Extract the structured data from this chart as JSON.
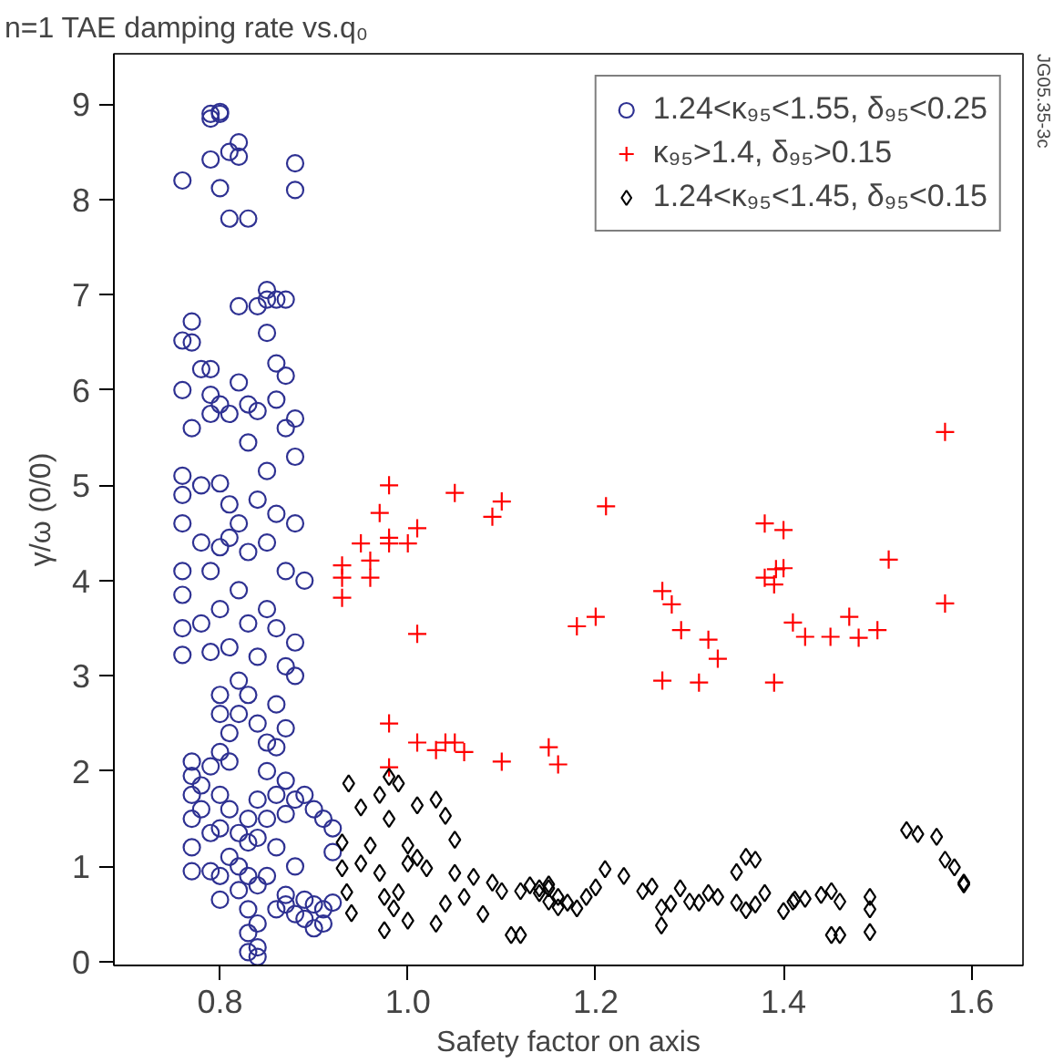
{
  "chart_data": {
    "type": "scatter",
    "title": "n=1 TAE damping rate vs.q₀",
    "xlabel": "Safety factor on axis",
    "ylabel": "γ/ω (0/0)",
    "annotations": [
      "JG05.35-3c"
    ],
    "xlim": [
      0.687,
      1.655
    ],
    "ylim": [
      -0.04,
      9.53
    ],
    "xticks": [
      0.8,
      {
        "value": 1.0,
        "label": "1.0"
      },
      1.2,
      1.4,
      1.6
    ],
    "yticks": [
      0,
      1,
      2,
      3,
      4,
      5,
      6,
      7,
      8,
      9
    ],
    "grid": false,
    "legend": "top right",
    "series": [
      {
        "name": "1.24<κ₉₅<1.55, δ₉₅<0.25",
        "color": "#2e3192",
        "marker": "circle",
        "x": [
          0.76,
          0.79,
          0.79,
          0.8,
          0.8,
          0.79,
          0.8,
          0.81,
          0.82,
          0.82,
          0.81,
          0.83,
          0.88,
          0.88,
          0.82,
          0.84,
          0.85,
          0.85,
          0.85,
          0.86,
          0.87,
          0.77,
          0.76,
          0.77,
          0.78,
          0.79,
          0.82,
          0.76,
          0.86,
          0.87,
          0.86,
          0.79,
          0.79,
          0.8,
          0.81,
          0.83,
          0.84,
          0.88,
          0.87,
          0.77,
          0.83,
          0.88,
          0.85,
          0.76,
          0.76,
          0.78,
          0.8,
          0.81,
          0.82,
          0.84,
          0.86,
          0.88,
          0.76,
          0.78,
          0.79,
          0.8,
          0.81,
          0.83,
          0.85,
          0.87,
          0.89,
          0.76,
          0.76,
          0.76,
          0.76,
          0.78,
          0.79,
          0.8,
          0.81,
          0.82,
          0.83,
          0.84,
          0.85,
          0.86,
          0.87,
          0.88,
          0.88,
          0.8,
          0.8,
          0.81,
          0.82,
          0.82,
          0.83,
          0.84,
          0.85,
          0.86,
          0.87,
          0.8,
          0.81,
          0.77,
          0.77,
          0.77,
          0.77,
          0.77,
          0.77,
          0.78,
          0.78,
          0.79,
          0.79,
          0.79,
          0.8,
          0.8,
          0.8,
          0.8,
          0.81,
          0.81,
          0.82,
          0.82,
          0.82,
          0.83,
          0.83,
          0.83,
          0.83,
          0.83,
          0.83,
          0.84,
          0.84,
          0.84,
          0.84,
          0.84,
          0.84,
          0.85,
          0.85,
          0.86,
          0.86,
          0.86,
          0.87,
          0.87,
          0.87,
          0.88,
          0.88,
          0.88,
          0.89,
          0.89,
          0.89,
          0.9,
          0.9,
          0.9,
          0.91,
          0.91,
          0.91,
          0.92,
          0.92,
          0.92,
          0.86,
          0.87,
          0.85
        ],
        "values": [
          8.2,
          8.85,
          8.9,
          8.92,
          8.9,
          8.42,
          8.12,
          8.5,
          8.6,
          8.45,
          7.8,
          7.8,
          8.38,
          8.1,
          6.88,
          6.88,
          7.05,
          6.95,
          6.6,
          6.95,
          6.95,
          6.72,
          6.52,
          6.5,
          6.22,
          6.22,
          6.08,
          6.0,
          6.28,
          6.15,
          5.9,
          5.95,
          5.75,
          5.85,
          5.75,
          5.85,
          5.78,
          5.7,
          5.6,
          5.6,
          5.45,
          5.3,
          5.15,
          5.1,
          4.9,
          5.0,
          5.02,
          4.8,
          4.6,
          4.85,
          4.7,
          4.6,
          4.6,
          4.4,
          4.1,
          4.35,
          4.45,
          4.3,
          4.4,
          4.1,
          4.0,
          4.1,
          3.85,
          3.5,
          3.22,
          3.55,
          3.25,
          3.7,
          3.3,
          3.9,
          3.55,
          3.2,
          3.7,
          3.5,
          3.1,
          3.35,
          3.0,
          2.8,
          2.6,
          2.4,
          2.95,
          2.6,
          2.8,
          2.5,
          2.3,
          2.7,
          2.45,
          2.2,
          2.1,
          2.1,
          1.95,
          1.75,
          1.5,
          1.2,
          0.95,
          1.85,
          1.6,
          1.35,
          2.05,
          0.95,
          1.75,
          1.4,
          0.9,
          0.65,
          1.6,
          1.1,
          1.35,
          1.0,
          0.75,
          1.5,
          1.25,
          0.9,
          0.55,
          0.3,
          0.1,
          1.3,
          0.8,
          0.4,
          0.15,
          0.05,
          1.7,
          2.0,
          1.5,
          1.75,
          1.2,
          2.25,
          1.9,
          1.55,
          0.6,
          1.7,
          1.0,
          0.5,
          0.65,
          0.45,
          1.75,
          0.6,
          0.35,
          1.6,
          0.55,
          1.5,
          0.4,
          1.4,
          0.62,
          1.15,
          0.55,
          0.7,
          0.9
        ]
      },
      {
        "name": "κ₉₅>1.4, δ₉₅>0.15",
        "color": "#ff0000",
        "marker": "cross",
        "x": [
          1.572,
          1.211,
          1.38,
          1.4,
          1.512,
          1.392,
          1.4,
          1.38,
          1.39,
          1.271,
          1.281,
          1.572,
          1.2,
          1.18,
          1.291,
          1.32,
          1.41,
          1.47,
          1.5,
          1.423,
          1.45,
          1.48,
          1.33,
          1.271,
          1.31,
          1.39,
          1.15,
          1.16,
          0.93,
          0.93,
          0.93,
          0.95,
          0.96,
          0.96,
          0.97,
          0.98,
          0.98,
          0.98,
          1.0,
          1.01,
          1.05,
          1.09,
          1.1,
          1.01,
          0.98,
          1.01,
          1.03,
          1.04,
          1.05,
          1.06,
          1.1,
          0.98
        ],
        "values": [
          5.56,
          4.78,
          4.6,
          4.53,
          4.22,
          4.12,
          4.13,
          4.03,
          3.96,
          3.89,
          3.75,
          3.76,
          3.62,
          3.52,
          3.48,
          3.38,
          3.56,
          3.62,
          3.48,
          3.41,
          3.41,
          3.4,
          3.18,
          2.95,
          2.93,
          2.93,
          2.25,
          2.07,
          4.16,
          4.03,
          3.82,
          4.39,
          4.21,
          4.03,
          4.71,
          5.0,
          4.45,
          4.39,
          4.39,
          4.55,
          4.92,
          4.67,
          4.83,
          3.44,
          2.5,
          2.3,
          2.22,
          2.3,
          2.3,
          2.2,
          2.1,
          2.04
        ]
      },
      {
        "name": "1.24<κ₉₅<1.45, δ₉₅<0.15",
        "color": "#000000",
        "marker": "diamond",
        "x": [
          1.531,
          1.543,
          1.563,
          1.572,
          1.582,
          1.592,
          1.592,
          1.492,
          1.492,
          1.492,
          1.451,
          1.46,
          1.451,
          1.46,
          1.44,
          1.423,
          1.412,
          1.41,
          1.4,
          1.38,
          1.37,
          1.36,
          1.35,
          1.35,
          1.36,
          1.37,
          1.33,
          1.32,
          1.31,
          1.3,
          1.29,
          1.28,
          1.27,
          1.27,
          1.26,
          1.25,
          1.23,
          1.21,
          1.2,
          1.19,
          1.18,
          1.17,
          1.16,
          1.15,
          1.15,
          1.14,
          0.937,
          0.95,
          0.97,
          0.98,
          0.99,
          0.98,
          1.01,
          1.03,
          1.04,
          1.05,
          0.93,
          0.93,
          0.935,
          0.94,
          0.95,
          0.96,
          0.97,
          0.975,
          0.985,
          0.99,
          1.0,
          1.0,
          1.01,
          1.02,
          1.0,
          1.03,
          1.04,
          1.05,
          1.06,
          1.07,
          1.08,
          1.09,
          1.1,
          1.11,
          1.12,
          1.12,
          1.13,
          1.14,
          1.15,
          1.16,
          0.975
        ],
        "values": [
          1.38,
          1.34,
          1.31,
          1.07,
          0.99,
          0.83,
          0.81,
          0.68,
          0.55,
          0.31,
          0.28,
          0.28,
          0.74,
          0.63,
          0.7,
          0.66,
          0.65,
          0.63,
          0.53,
          0.72,
          0.6,
          0.54,
          0.62,
          0.94,
          1.1,
          1.07,
          0.68,
          0.72,
          0.62,
          0.63,
          0.77,
          0.61,
          0.57,
          0.38,
          0.79,
          0.74,
          0.9,
          0.97,
          0.78,
          0.68,
          0.56,
          0.62,
          0.57,
          0.77,
          0.63,
          0.72,
          1.87,
          1.62,
          1.75,
          1.94,
          1.87,
          1.5,
          1.64,
          1.7,
          1.53,
          1.28,
          1.25,
          0.98,
          0.73,
          0.51,
          1.03,
          1.22,
          0.93,
          0.68,
          0.56,
          0.73,
          1.03,
          1.22,
          1.09,
          0.98,
          0.43,
          0.4,
          0.61,
          0.93,
          0.68,
          0.89,
          0.5,
          0.83,
          0.74,
          0.28,
          0.28,
          0.74,
          0.8,
          0.77,
          0.81,
          0.68,
          0.33
        ]
      }
    ]
  }
}
